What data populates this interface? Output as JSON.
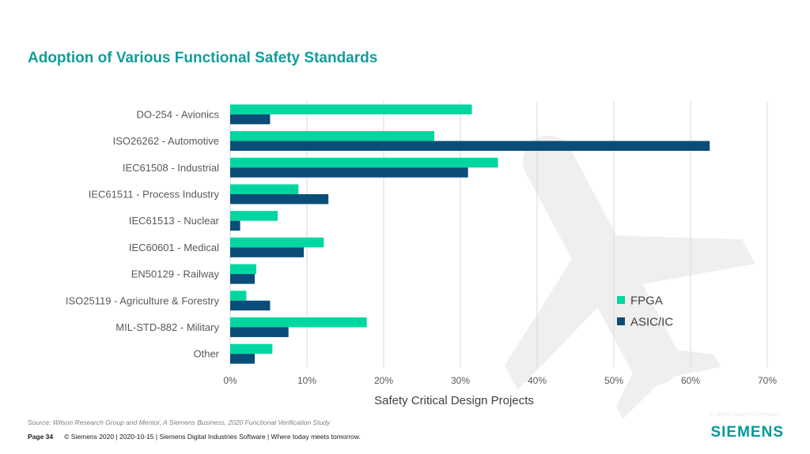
{
  "title": "Adoption of Various Functional Safety Standards",
  "source": "Source:  Wilson Research Group and Mentor, A Siemens Business, 2020 Functional Verification Study",
  "footer": {
    "page": "Page 34",
    "text": "© Siemens 2020 | 2020-10-15 | Siemens Digital Industries Software | Where today meets tomorrow."
  },
  "logo": "SIEMENS",
  "watermark_credit": "© Moritz Kaiser/shutterstock",
  "colors": {
    "title": "#129c9c",
    "fpga": "#00d7a0",
    "asic": "#0a4d78",
    "grid": "#d9d9d9",
    "watermark": "#f0efee"
  },
  "chart_data": {
    "type": "bar",
    "orientation": "horizontal",
    "title": "",
    "xlabel": "Safety Critical Design Projects",
    "ylabel": "",
    "xlim": [
      0,
      70
    ],
    "xticks": [
      "0%",
      "10%",
      "20%",
      "30%",
      "40%",
      "50%",
      "60%",
      "70%"
    ],
    "grid": true,
    "legend_position": "right",
    "categories": [
      "DO-254 - Avionics",
      "ISO26262 - Automotive",
      "IEC61508 - Industrial",
      "IEC61511 - Process Industry",
      "IEC61513 - Nuclear",
      "IEC60601 - Medical",
      "EN50129 - Railway",
      "ISO25119 - Agriculture & Forestry",
      "MIL-STD-882 - Military",
      "Other"
    ],
    "series": [
      {
        "name": "FPGA",
        "color": "#00d7a0",
        "values": [
          31.5,
          26.6,
          34.9,
          8.9,
          6.2,
          12.2,
          3.4,
          2.1,
          17.8,
          5.5
        ]
      },
      {
        "name": "ASIC/IC",
        "color": "#0a4d78",
        "values": [
          5.2,
          62.5,
          31.0,
          12.8,
          1.3,
          9.6,
          3.2,
          5.2,
          7.6,
          3.2
        ]
      }
    ]
  }
}
